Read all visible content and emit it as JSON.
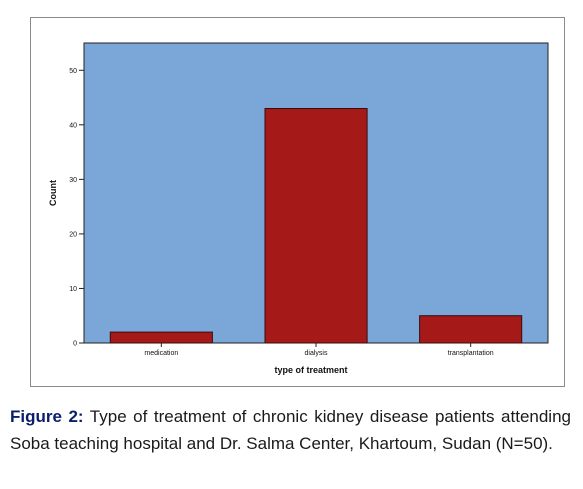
{
  "chart_data": {
    "type": "bar",
    "categories": [
      "medication",
      "dialysis",
      "transplantation"
    ],
    "values": [
      2,
      43,
      5
    ],
    "xlabel": "type of treatment",
    "ylabel": "Count",
    "ylim": [
      0,
      55
    ],
    "yticks": [
      0,
      10,
      20,
      30,
      40,
      50
    ],
    "grid": false,
    "colors": {
      "plot_background": "#7aa7d8",
      "bar_fill": "#a51919",
      "bar_stroke": "#3a0a0a"
    }
  },
  "caption": {
    "label": "Figure 2:",
    "text": " Type of treatment of chronic kidney disease patients attending Soba teaching hospital and Dr. Salma Center, Khartoum, Sudan (N=50)."
  }
}
